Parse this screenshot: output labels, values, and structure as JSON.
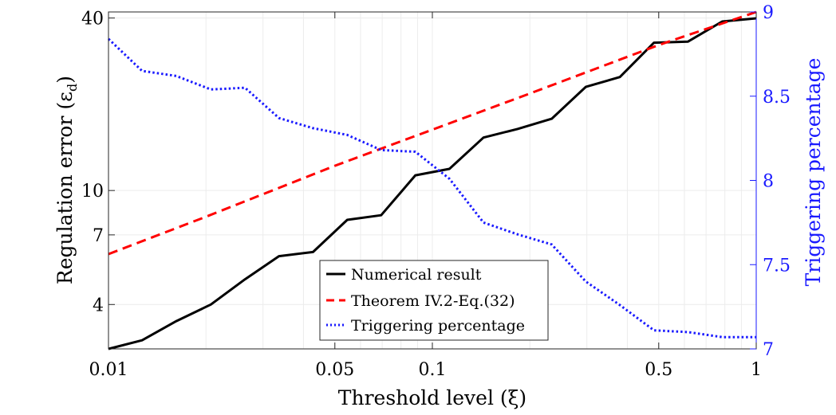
{
  "chart_data": {
    "type": "line",
    "title": "",
    "xlabel": "Threshold level (ξ)",
    "ylabel_left": "Regulation error (ε",
    "ylabel_left_sub": "d",
    "ylabel_left_close": ")",
    "ylabel_right": "Triggering percentage",
    "xscale": "log",
    "yscale_left": "log",
    "xlim": [
      0.01,
      1
    ],
    "ylim_left": [
      2.8,
      42
    ],
    "ylim_right": [
      7,
      9
    ],
    "x_ticks": [
      0.01,
      0.05,
      0.1,
      0.5,
      1
    ],
    "x_tick_labels": [
      "0.01",
      "0.05",
      "0.1",
      "0.5",
      "1"
    ],
    "y_left_ticks": [
      4,
      7,
      10,
      40
    ],
    "y_left_tick_labels": [
      "4",
      "7",
      "10",
      "40"
    ],
    "y_right_ticks": [
      7,
      7.5,
      8,
      8.5,
      9
    ],
    "y_right_tick_labels": [
      "7",
      "7.5",
      "8",
      "8.5",
      "9"
    ],
    "grid": true,
    "legend_position": "bottom-center",
    "series": [
      {
        "name": "Numerical result",
        "axis": "left",
        "color": "#000000",
        "style": "solid",
        "x": [
          0.01,
          0.0127,
          0.0162,
          0.0207,
          0.0264,
          0.0336,
          0.0428,
          0.0546,
          0.0695,
          0.0886,
          0.1129,
          0.1438,
          0.1833,
          0.2336,
          0.2976,
          0.3793,
          0.4833,
          0.6158,
          0.7848,
          1.0
        ],
        "values": [
          2.8,
          3.0,
          3.5,
          4.0,
          4.9,
          5.9,
          6.1,
          7.9,
          8.2,
          11.3,
          11.9,
          15.3,
          16.4,
          17.8,
          23.0,
          24.9,
          32.8,
          33.1,
          38.9,
          39.9
        ]
      },
      {
        "name": "Theorem IV.2-Eq.(32)",
        "axis": "left",
        "color": "#ff0000",
        "style": "dashed",
        "x": [
          0.01,
          0.02,
          0.05,
          0.1,
          0.2,
          0.5,
          1.0
        ],
        "values": [
          6.0,
          8.1,
          12.2,
          16.3,
          21.8,
          32.2,
          42.0
        ]
      },
      {
        "name": "Triggering percentage",
        "axis": "right",
        "color": "#1a1aff",
        "style": "dotted",
        "x": [
          0.01,
          0.0127,
          0.0162,
          0.0207,
          0.0264,
          0.0336,
          0.0428,
          0.0546,
          0.0695,
          0.0886,
          0.1129,
          0.1438,
          0.1833,
          0.2336,
          0.2976,
          0.3793,
          0.4833,
          0.6158,
          0.7848,
          1.0
        ],
        "values": [
          8.84,
          8.65,
          8.62,
          8.54,
          8.55,
          8.37,
          8.31,
          8.27,
          8.18,
          8.17,
          8.01,
          7.75,
          7.68,
          7.62,
          7.4,
          7.26,
          7.11,
          7.1,
          7.07,
          7.07
        ]
      }
    ]
  }
}
